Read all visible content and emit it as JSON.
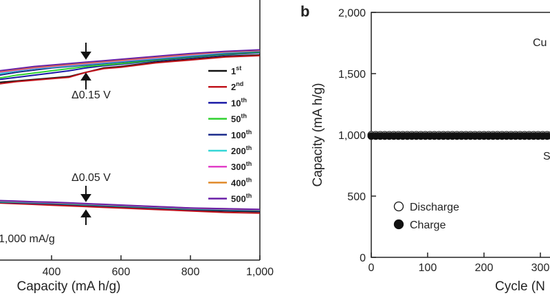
{
  "chart_data": [
    {
      "type": "line",
      "x_label": "Capacity (mA h/g)",
      "x": [
        250,
        300,
        350,
        400,
        450,
        500,
        550,
        600,
        700,
        800,
        900,
        1000
      ],
      "xlim": [
        0,
        1000
      ],
      "ylim": [
        0,
        1.8
      ],
      "xticks": [
        400,
        600,
        800,
        {
          "value": 1000,
          "label": "1,000"
        }
      ],
      "annotations": [
        "Δ0.15 V",
        "Δ0.05 V",
        "1,000 mA/g"
      ],
      "series": [
        {
          "name": "1st",
          "color": "#111111",
          "values": [
            1.23,
            1.24,
            1.25,
            1.26,
            1.27,
            1.3,
            1.33,
            1.34,
            1.37,
            1.39,
            1.41,
            1.42
          ],
          "discharge_values": [
            0.4,
            0.395,
            0.39,
            0.385,
            0.38,
            0.375,
            0.37,
            0.365,
            0.355,
            0.345,
            0.34,
            0.335
          ]
        },
        {
          "name": "2nd",
          "color": "#c0141c",
          "values": [
            1.22,
            1.235,
            1.245,
            1.255,
            1.265,
            1.3,
            1.325,
            1.335,
            1.365,
            1.385,
            1.405,
            1.415
          ],
          "discharge_values": [
            0.395,
            0.39,
            0.385,
            0.38,
            0.375,
            0.37,
            0.365,
            0.36,
            0.35,
            0.34,
            0.33,
            0.325
          ]
        },
        {
          "name": "10th",
          "color": "#1a1aa6",
          "values": [
            1.25,
            1.265,
            1.28,
            1.295,
            1.31,
            1.33,
            1.345,
            1.355,
            1.38,
            1.4,
            1.42,
            1.435
          ],
          "discharge_values": [
            0.4,
            0.397,
            0.393,
            0.39,
            0.385,
            0.38,
            0.375,
            0.37,
            0.36,
            0.35,
            0.345,
            0.34
          ]
        },
        {
          "name": "50th",
          "color": "#2ed12e",
          "values": [
            1.26,
            1.28,
            1.295,
            1.31,
            1.325,
            1.34,
            1.35,
            1.36,
            1.385,
            1.405,
            1.425,
            1.44
          ],
          "discharge_values": [
            0.403,
            0.4,
            0.396,
            0.393,
            0.388,
            0.383,
            0.378,
            0.373,
            0.363,
            0.353,
            0.348,
            0.343
          ]
        },
        {
          "name": "100th",
          "color": "#1c2d8c",
          "values": [
            1.28,
            1.3,
            1.315,
            1.33,
            1.34,
            1.35,
            1.36,
            1.37,
            1.39,
            1.41,
            1.43,
            1.445
          ],
          "discharge_values": [
            0.405,
            0.402,
            0.398,
            0.395,
            0.39,
            0.385,
            0.38,
            0.375,
            0.365,
            0.355,
            0.35,
            0.345
          ]
        },
        {
          "name": "200th",
          "color": "#33d6d6",
          "values": [
            1.29,
            1.31,
            1.325,
            1.335,
            1.345,
            1.355,
            1.365,
            1.375,
            1.395,
            1.415,
            1.435,
            1.448
          ],
          "discharge_values": [
            0.407,
            0.404,
            0.4,
            0.397,
            0.392,
            0.387,
            0.382,
            0.377,
            0.367,
            0.357,
            0.352,
            0.347
          ]
        },
        {
          "name": "300th",
          "color": "#e23fc8",
          "values": [
            1.3,
            1.315,
            1.33,
            1.34,
            1.35,
            1.36,
            1.37,
            1.38,
            1.4,
            1.42,
            1.44,
            1.45
          ],
          "discharge_values": [
            0.41,
            0.406,
            0.402,
            0.398,
            0.394,
            0.389,
            0.384,
            0.379,
            0.369,
            0.359,
            0.354,
            0.349
          ]
        },
        {
          "name": "400th",
          "color": "#e08a2a",
          "values": [
            1.305,
            1.32,
            1.335,
            1.345,
            1.355,
            1.365,
            1.375,
            1.385,
            1.405,
            1.425,
            1.442,
            1.452
          ],
          "discharge_values": [
            0.41,
            0.407,
            0.403,
            0.4,
            0.395,
            0.39,
            0.385,
            0.38,
            0.37,
            0.36,
            0.355,
            0.35
          ]
        },
        {
          "name": "500th",
          "color": "#6a1fa8",
          "values": [
            1.31,
            1.325,
            1.34,
            1.35,
            1.36,
            1.37,
            1.38,
            1.39,
            1.41,
            1.43,
            1.445,
            1.455
          ],
          "discharge_values": [
            0.412,
            0.408,
            0.404,
            0.401,
            0.396,
            0.391,
            0.386,
            0.381,
            0.371,
            0.361,
            0.356,
            0.351
          ]
        }
      ]
    },
    {
      "type": "scatter",
      "panel_label": "b",
      "x_label": "Cycle (N",
      "y_label": "Capacity (mA h/g)",
      "xlim": [
        0,
        500
      ],
      "ylim": [
        0,
        2000
      ],
      "xticks": [
        0,
        100,
        200,
        300
      ],
      "yticks": [
        0,
        500,
        {
          "value": 1000,
          "label": "1,000"
        },
        {
          "value": 1500,
          "label": "1,500"
        },
        {
          "value": 2000,
          "label": "2,000"
        }
      ],
      "annotations": [
        "Cu",
        "S"
      ],
      "x": [
        0,
        8,
        16,
        24,
        32,
        40,
        48,
        56,
        64,
        72,
        80,
        88,
        96,
        104,
        112,
        120,
        128,
        136,
        144,
        152,
        160,
        168,
        176,
        184,
        192,
        200,
        208,
        216,
        224,
        232,
        240,
        248,
        256,
        264,
        272,
        280,
        288,
        296,
        304,
        312,
        320
      ],
      "series": [
        {
          "name": "Discharge",
          "color": "#ffffff",
          "values": [
            1000,
            1000,
            1000,
            1000,
            1000,
            1000,
            1000,
            1000,
            1000,
            1000,
            1000,
            1000,
            1000,
            1000,
            1000,
            1000,
            1000,
            1000,
            1000,
            1000,
            1000,
            1000,
            1000,
            1000,
            1000,
            1000,
            1000,
            1000,
            1000,
            1000,
            1000,
            1000,
            1000,
            1000,
            1000,
            1000,
            1000,
            1000,
            1000,
            1000,
            1000
          ]
        },
        {
          "name": "Charge",
          "color": "#111111",
          "values": [
            990,
            990,
            990,
            990,
            990,
            990,
            990,
            990,
            990,
            990,
            990,
            990,
            990,
            990,
            990,
            990,
            990,
            990,
            990,
            990,
            990,
            990,
            990,
            990,
            990,
            990,
            990,
            990,
            990,
            990,
            990,
            990,
            990,
            990,
            990,
            990,
            990,
            990,
            990,
            990,
            990
          ]
        }
      ]
    }
  ]
}
